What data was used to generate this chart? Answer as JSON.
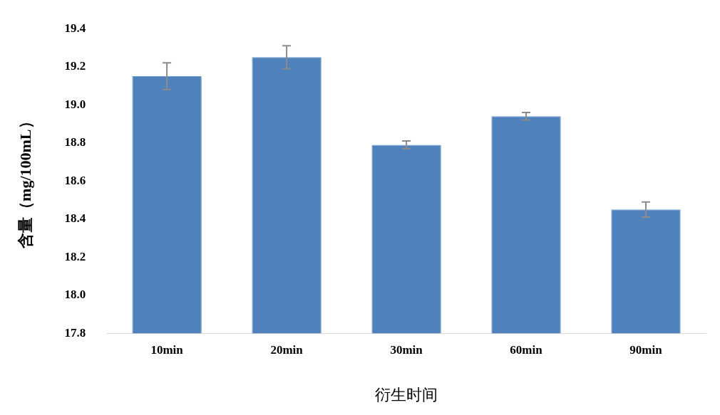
{
  "chart_data": {
    "type": "bar",
    "categories": [
      "10min",
      "20min",
      "30min",
      "60min",
      "90min"
    ],
    "values": [
      19.15,
      19.25,
      18.79,
      18.94,
      18.45
    ],
    "errors": [
      0.07,
      0.06,
      0.02,
      0.02,
      0.04
    ],
    "color": "#4f81bd",
    "xlabel": "衍生时间",
    "ylabel": "含量（mg/100mL）",
    "ylim": [
      17.8,
      19.4
    ],
    "yticks": [
      17.8,
      {
        "value": 18,
        "label": "18.0"
      },
      18.2,
      18.4,
      18.6,
      18.8,
      {
        "value": 19,
        "label": "19.0"
      },
      19.2,
      19.4
    ],
    "grid": false,
    "legend": false
  }
}
